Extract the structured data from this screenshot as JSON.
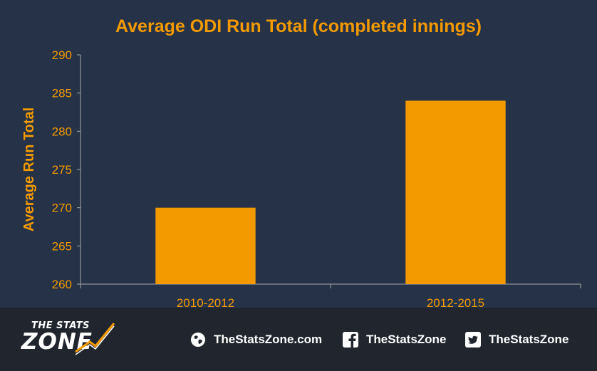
{
  "colors": {
    "background": "#253248",
    "footer": "#21262e",
    "accent": "#f39a00",
    "axis": "#a9a9a9"
  },
  "chart_data": {
    "type": "bar",
    "title": "Average ODI Run Total (completed innings)",
    "xlabel": "",
    "ylabel": "Average Run Total",
    "categories": [
      "2010-2012",
      "2012-2015"
    ],
    "values": [
      270,
      284
    ],
    "ylim": [
      260,
      290
    ],
    "yticks": [
      260,
      265,
      270,
      275,
      280,
      285,
      290
    ],
    "grid": false,
    "legend": "none"
  },
  "footer": {
    "logo_top": "THE STATS",
    "logo_bottom": "ZONE",
    "links": [
      {
        "icon": "globe-icon",
        "label": "TheStatsZone.com"
      },
      {
        "icon": "facebook-icon",
        "label": "TheStatsZone"
      },
      {
        "icon": "twitter-icon",
        "label": "TheStatsZone"
      }
    ]
  }
}
